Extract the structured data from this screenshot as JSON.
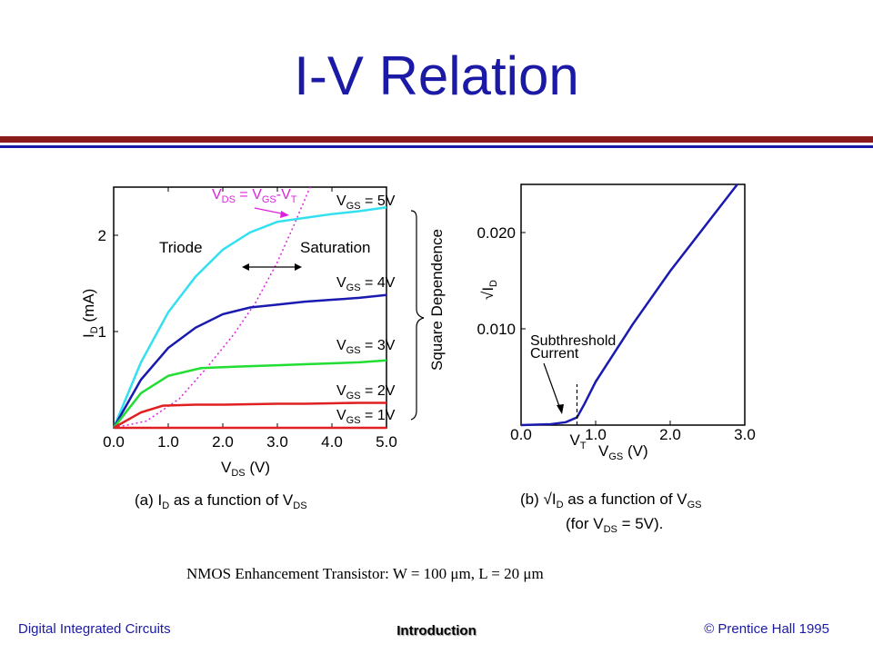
{
  "title": "I-V Relation",
  "colors": {
    "title": "#1a1aa6",
    "rule_red": "#8b1a1a",
    "rule_blue": "#1a1aa6"
  },
  "footer": {
    "left": "Digital Integrated Circuits",
    "center": "Introduction",
    "right": "© Prentice Hall 1995"
  },
  "transistor_caption": "NMOS Enhancement Transistor: W = 100 μm, L = 20 μm",
  "chart_data": [
    {
      "type": "line",
      "caption": {
        "pre": "(a) I",
        "sub1": "D",
        "mid": " as a function of V",
        "sub2": "DS"
      },
      "xlabel": {
        "main": "V",
        "sub": "DS",
        "tail": " (V)"
      },
      "ylabel": {
        "main": "I",
        "sub": "D",
        "tail": " (mA)"
      },
      "xlim": [
        0,
        5
      ],
      "ylim": [
        0,
        2.5
      ],
      "xticks": [
        "0.0",
        "1.0",
        "2.0",
        "3.0",
        "4.0",
        "5.0"
      ],
      "yticks": [
        "1",
        "2"
      ],
      "series": [
        {
          "name": "VGS = 5V",
          "label_main": "V",
          "label_sub": "GS",
          "label_tail": " = 5V",
          "color": "#33e0f0",
          "x": [
            0,
            0.5,
            1.0,
            1.5,
            2.0,
            2.5,
            3.0,
            3.5,
            4.0,
            4.5,
            5.0
          ],
          "y": [
            0,
            0.68,
            1.2,
            1.57,
            1.85,
            2.03,
            2.14,
            2.18,
            2.22,
            2.25,
            2.29
          ]
        },
        {
          "name": "VGS = 4V",
          "label_main": "V",
          "label_sub": "GS",
          "label_tail": " = 4V",
          "color": "#1a1ab0",
          "x": [
            0,
            0.5,
            1.0,
            1.5,
            2.0,
            2.5,
            3.0,
            3.5,
            4.0,
            4.5,
            5.0
          ],
          "y": [
            0,
            0.5,
            0.83,
            1.04,
            1.18,
            1.25,
            1.28,
            1.31,
            1.33,
            1.35,
            1.38
          ]
        },
        {
          "name": "VGS = 3V",
          "label_main": "V",
          "label_sub": "GS",
          "label_tail": " = 3V",
          "color": "#22dd33",
          "x": [
            0,
            0.5,
            1.0,
            1.6,
            2.0,
            2.5,
            3.0,
            3.5,
            4.0,
            4.5,
            5.0
          ],
          "y": [
            0,
            0.36,
            0.54,
            0.62,
            0.63,
            0.64,
            0.65,
            0.66,
            0.67,
            0.68,
            0.7
          ]
        },
        {
          "name": "VGS = 2V",
          "label_main": "V",
          "label_sub": "GS",
          "label_tail": " = 2V",
          "color": "#e02020",
          "x": [
            0,
            0.5,
            0.9,
            1.5,
            2.0,
            2.5,
            3.0,
            3.5,
            4.0,
            4.5,
            5.0
          ],
          "y": [
            0,
            0.16,
            0.23,
            0.24,
            0.24,
            0.245,
            0.25,
            0.25,
            0.255,
            0.26,
            0.26
          ]
        },
        {
          "name": "VGS = 1V",
          "label_main": "V",
          "label_sub": "GS",
          "label_tail": " = 1V",
          "color": "#e02020",
          "x": [
            0,
            5.0
          ],
          "y": [
            0,
            0
          ]
        }
      ],
      "boundary": {
        "name": "VDS = VGS-VT",
        "label_main": "V",
        "label_sub1": "DS",
        "label_eq": " = V",
        "label_sub2": "GS",
        "label_dash": "-V",
        "label_sub3": "T",
        "color": "#e020e0",
        "x": [
          0,
          0.6,
          1.2,
          1.7,
          2.2,
          2.6,
          3.0,
          3.3,
          3.6
        ],
        "y": [
          0,
          0.07,
          0.3,
          0.62,
          0.97,
          1.3,
          1.72,
          2.1,
          2.5
        ]
      },
      "annotations": {
        "triode": "Triode",
        "saturation": "Saturation",
        "square": "Square Dependence"
      }
    },
    {
      "type": "line",
      "caption": {
        "pre": "(b) √I",
        "sub1": "D",
        "mid": " as a function of V",
        "sub2": "GS",
        "line2": "(for V",
        "line2sub": "DS",
        "line2tail": " = 5V)."
      },
      "xlabel": {
        "main": "V",
        "sub": "GS",
        "tail": " (V)"
      },
      "ylabel": {
        "main": "√I",
        "sub": "D",
        "tail": ""
      },
      "xlim": [
        0,
        3
      ],
      "ylim": [
        0,
        0.025
      ],
      "xticks": [
        "0.0",
        "1.0",
        "2.0",
        "3.0"
      ],
      "yticks": [
        "0.010",
        "0.020"
      ],
      "series": [
        {
          "name": "sqrt ID",
          "color": "#1a1ab0",
          "x": [
            0,
            0.4,
            0.6,
            0.75,
            0.85,
            1.0,
            1.5,
            2.0,
            2.5,
            2.9
          ],
          "y": [
            0,
            0.0001,
            0.0003,
            0.0008,
            0.0022,
            0.0045,
            0.0105,
            0.016,
            0.021,
            0.025
          ]
        }
      ],
      "vt": {
        "value": 0.75,
        "label_main": "V",
        "label_sub": "T"
      },
      "annotations": {
        "subthreshold_1": "Subthreshold",
        "subthreshold_2": "Current"
      }
    }
  ]
}
